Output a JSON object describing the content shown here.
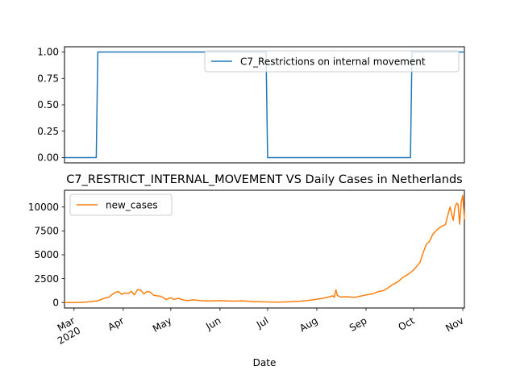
{
  "chart_data": [
    {
      "type": "line",
      "title": "",
      "xlabel": "",
      "ylabel": "",
      "x_range": [
        "2020-02-24",
        "2020-11-02"
      ],
      "ylim": [
        -0.05,
        1.05
      ],
      "yticks": [
        0.0,
        0.25,
        0.5,
        0.75,
        1.0
      ],
      "ytick_labels": [
        "0.00",
        "0.25",
        "0.50",
        "0.75",
        "1.00"
      ],
      "legend_position": "upper right",
      "grid": false,
      "series": [
        {
          "name": "C7_Restrictions on internal movement",
          "color": "#1f77b4",
          "points": [
            [
              "2020-02-24",
              0
            ],
            [
              "2020-03-15",
              0
            ],
            [
              "2020-03-16",
              1
            ],
            [
              "2020-06-30",
              1
            ],
            [
              "2020-07-01",
              0
            ],
            [
              "2020-09-29",
              0
            ],
            [
              "2020-09-30",
              1
            ],
            [
              "2020-11-02",
              1
            ]
          ]
        }
      ]
    },
    {
      "type": "line",
      "title": "C7_RESTRICT_INTERNAL_MOVEMENT VS Daily Cases in Netherlands",
      "xlabel": "Date",
      "ylabel": "",
      "x_range": [
        "2020-02-24",
        "2020-11-02"
      ],
      "ylim": [
        -570,
        11750
      ],
      "yticks": [
        0,
        2500,
        5000,
        7500,
        10000
      ],
      "ytick_labels": [
        "0",
        "2500",
        "5000",
        "7500",
        "10000"
      ],
      "xtick_labels": [
        "Mar\n2020",
        "Apr",
        "May",
        "Jun",
        "Jul",
        "Aug",
        "Sep",
        "Oct",
        "Nov"
      ],
      "xtick_dates": [
        "2020-03-01",
        "2020-04-01",
        "2020-05-01",
        "2020-06-01",
        "2020-07-01",
        "2020-08-01",
        "2020-09-01",
        "2020-10-01",
        "2020-11-01"
      ],
      "legend_position": "upper left",
      "grid": false,
      "series": [
        {
          "name": "new_cases",
          "color": "#ff7f0e",
          "points": [
            [
              "2020-02-24",
              0
            ],
            [
              "2020-03-01",
              5
            ],
            [
              "2020-03-05",
              20
            ],
            [
              "2020-03-08",
              50
            ],
            [
              "2020-03-11",
              80
            ],
            [
              "2020-03-14",
              150
            ],
            [
              "2020-03-16",
              170
            ],
            [
              "2020-03-18",
              320
            ],
            [
              "2020-03-20",
              450
            ],
            [
              "2020-03-23",
              560
            ],
            [
              "2020-03-25",
              830
            ],
            [
              "2020-03-27",
              1060
            ],
            [
              "2020-03-29",
              1150
            ],
            [
              "2020-03-31",
              850
            ],
            [
              "2020-04-02",
              1020
            ],
            [
              "2020-04-04",
              920
            ],
            [
              "2020-04-06",
              1180
            ],
            [
              "2020-04-08",
              800
            ],
            [
              "2020-04-10",
              1350
            ],
            [
              "2020-04-12",
              1300
            ],
            [
              "2020-04-14",
              900
            ],
            [
              "2020-04-16",
              1150
            ],
            [
              "2020-04-18",
              1100
            ],
            [
              "2020-04-20",
              780
            ],
            [
              "2020-04-22",
              700
            ],
            [
              "2020-04-24",
              680
            ],
            [
              "2020-04-26",
              550
            ],
            [
              "2020-04-28",
              320
            ],
            [
              "2020-05-01",
              500
            ],
            [
              "2020-05-03",
              330
            ],
            [
              "2020-05-06",
              440
            ],
            [
              "2020-05-09",
              260
            ],
            [
              "2020-05-12",
              200
            ],
            [
              "2020-05-15",
              280
            ],
            [
              "2020-05-20",
              200
            ],
            [
              "2020-05-25",
              160
            ],
            [
              "2020-06-01",
              200
            ],
            [
              "2020-06-05",
              170
            ],
            [
              "2020-06-10",
              150
            ],
            [
              "2020-06-15",
              180
            ],
            [
              "2020-06-20",
              110
            ],
            [
              "2020-06-25",
              90
            ],
            [
              "2020-07-01",
              60
            ],
            [
              "2020-07-08",
              50
            ],
            [
              "2020-07-15",
              90
            ],
            [
              "2020-07-22",
              150
            ],
            [
              "2020-07-28",
              250
            ],
            [
              "2020-08-01",
              350
            ],
            [
              "2020-08-05",
              450
            ],
            [
              "2020-08-09",
              600
            ],
            [
              "2020-08-11",
              700
            ],
            [
              "2020-08-12",
              550
            ],
            [
              "2020-08-13",
              1330
            ],
            [
              "2020-08-14",
              750
            ],
            [
              "2020-08-16",
              580
            ],
            [
              "2020-08-20",
              600
            ],
            [
              "2020-08-25",
              550
            ],
            [
              "2020-08-28",
              650
            ],
            [
              "2020-09-01",
              800
            ],
            [
              "2020-09-05",
              900
            ],
            [
              "2020-09-09",
              1150
            ],
            [
              "2020-09-12",
              1250
            ],
            [
              "2020-09-15",
              1550
            ],
            [
              "2020-09-18",
              1900
            ],
            [
              "2020-09-21",
              2150
            ],
            [
              "2020-09-24",
              2600
            ],
            [
              "2020-09-27",
              2900
            ],
            [
              "2020-09-30",
              3250
            ],
            [
              "2020-10-03",
              3800
            ],
            [
              "2020-10-05",
              4200
            ],
            [
              "2020-10-07",
              5200
            ],
            [
              "2020-10-09",
              6100
            ],
            [
              "2020-10-11",
              6400
            ],
            [
              "2020-10-13",
              7100
            ],
            [
              "2020-10-15",
              7500
            ],
            [
              "2020-10-17",
              7800
            ],
            [
              "2020-10-19",
              8000
            ],
            [
              "2020-10-21",
              8150
            ],
            [
              "2020-10-23",
              9400
            ],
            [
              "2020-10-24",
              10000
            ],
            [
              "2020-10-25",
              9200
            ],
            [
              "2020-10-26",
              8600
            ],
            [
              "2020-10-27",
              9900
            ],
            [
              "2020-10-28",
              10400
            ],
            [
              "2020-10-29",
              10300
            ],
            [
              "2020-10-30",
              8200
            ],
            [
              "2020-10-31",
              10500
            ],
            [
              "2020-11-01",
              11200
            ],
            [
              "2020-11-02",
              8700
            ]
          ]
        }
      ]
    }
  ]
}
